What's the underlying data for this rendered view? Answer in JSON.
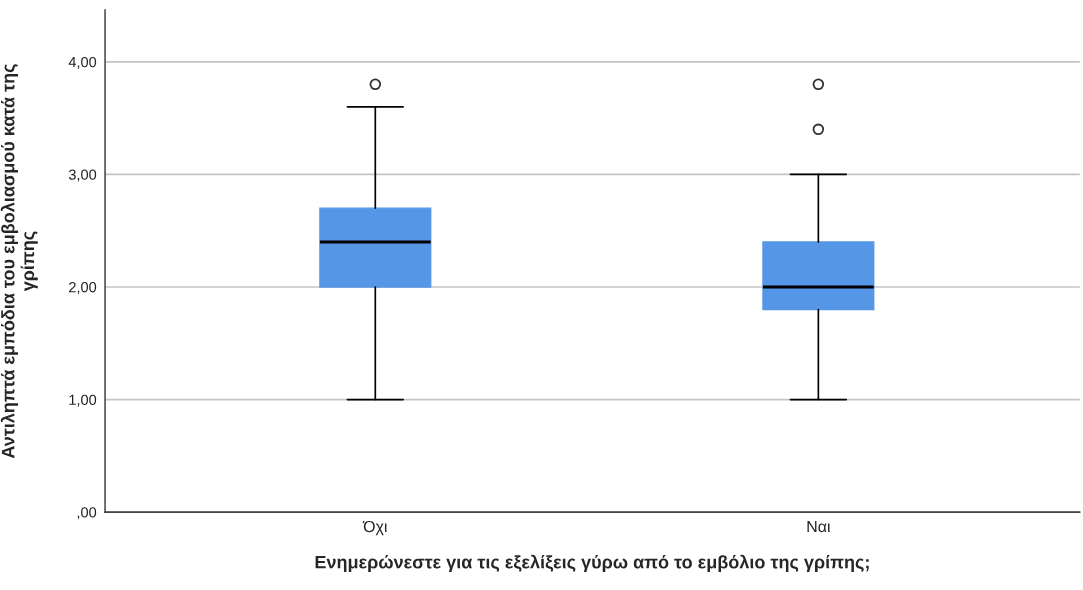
{
  "chart_data": {
    "type": "box",
    "xlabel": "Ενημερώνεστε για τις εξελίξεις γύρω από το εμβόλιο της γρίπης;",
    "ylabel": "Αντιληπτά εμπόδια του εμβολιασμού κατά της\nγρίπης",
    "categories": [
      "Όχι",
      "Ναι"
    ],
    "color": "#5596e6",
    "boxes": [
      {
        "low": 1.0,
        "q1": 2.0,
        "median": 2.4,
        "q3": 2.7,
        "high": 3.6,
        "outliers": [
          3.8
        ]
      },
      {
        "low": 1.0,
        "q1": 1.8,
        "median": 2.0,
        "q3": 2.4,
        "high": 3.0,
        "outliers": [
          3.4,
          3.8
        ]
      }
    ],
    "ylim": [
      0,
      4.46
    ],
    "yticks": [
      {
        "value": 0,
        "label": ",00"
      },
      {
        "value": 1,
        "label": "1,00"
      },
      {
        "value": 2,
        "label": "2,00"
      },
      {
        "value": 3,
        "label": "3,00"
      },
      {
        "value": 4,
        "label": "4,00"
      }
    ],
    "grid": "y"
  }
}
